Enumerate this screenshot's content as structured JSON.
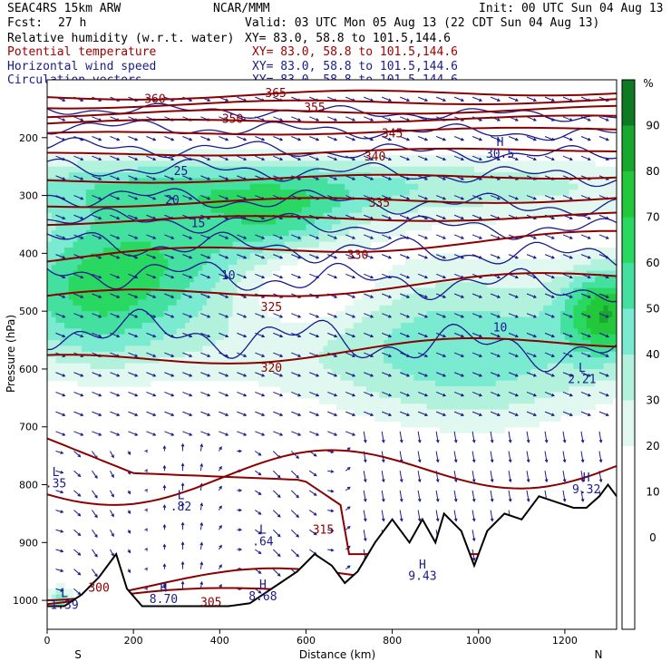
{
  "header": {
    "model": "SEAC4RS 15km ARW",
    "center": "NCAR/MMM",
    "init": "Init: 00 UTC Sun 04 Aug 13",
    "fcst_label": "Fcst:",
    "fcst_value": "27 h",
    "valid": "Valid: 03 UTC Mon 05 Aug 13 (22 CDT Sun 04 Aug 13)"
  },
  "fields": [
    {
      "name": "Relative humidity (w.r.t. water)",
      "xy": "XY=  83.0, 58.8 to 101.5,144.6",
      "color": "#000000"
    },
    {
      "name": "Potential temperature",
      "xy": "XY=  83.0, 58.8 to 101.5,144.6",
      "color": "#a00000"
    },
    {
      "name": "Horizontal wind speed",
      "xy": "XY=  83.0, 58.8 to 101.5,144.6",
      "color": "#1a1a8c"
    },
    {
      "name": "Circulation vectors",
      "xy": "XY=  83.0, 58.8 to 101.5,144.6",
      "color": "#1a1a8c"
    }
  ],
  "chart_data": {
    "type": "heatmap",
    "title": "",
    "xlabel": "Distance (km)",
    "ylabel": "Pressure (hPa)",
    "xlim": [
      0,
      1320
    ],
    "ylim": [
      1050,
      100
    ],
    "x_ticks": [
      0,
      200,
      400,
      600,
      800,
      1000,
      1200
    ],
    "y_ticks": [
      200,
      300,
      400,
      500,
      600,
      700,
      800,
      900,
      1000
    ],
    "end_labels": {
      "left": "S",
      "right": "N"
    },
    "colorbar": {
      "unit": "%",
      "labels": [
        90,
        80,
        70,
        60,
        50,
        40,
        30,
        20,
        10,
        0
      ],
      "colors": [
        "#ffffff",
        "#ffffff",
        "#ffffff",
        "#ffffff",
        "#e0f8f0",
        "#b2f2dc",
        "#7aead0",
        "#44e0a0",
        "#28d860",
        "#22c83a",
        "#18a830",
        "#0e7a22"
      ]
    },
    "theta_labels": [
      {
        "value": "365",
        "x": 530,
        "p": 125
      },
      {
        "value": "360",
        "x": 250,
        "p": 135
      },
      {
        "value": "355",
        "x": 620,
        "p": 150
      },
      {
        "value": "350",
        "x": 430,
        "p": 170
      },
      {
        "value": "345",
        "x": 800,
        "p": 195
      },
      {
        "value": "340",
        "x": 760,
        "p": 235
      },
      {
        "value": "335",
        "x": 770,
        "p": 315
      },
      {
        "value": "330",
        "x": 720,
        "p": 405
      },
      {
        "value": "325",
        "x": 520,
        "p": 495
      },
      {
        "value": "320",
        "x": 520,
        "p": 600
      },
      {
        "value": "315",
        "x": 640,
        "p": 880
      },
      {
        "value": "305",
        "x": 380,
        "p": 1005
      },
      {
        "value": "300",
        "x": 120,
        "p": 980
      }
    ],
    "wind_labels": [
      {
        "value": "10",
        "x": 420,
        "p": 440
      },
      {
        "value": "15",
        "x": 350,
        "p": 350
      },
      {
        "value": "20",
        "x": 290,
        "p": 310
      },
      {
        "value": "25",
        "x": 310,
        "p": 260
      },
      {
        "value": "10",
        "x": 1050,
        "p": 530
      }
    ],
    "extrema": [
      {
        "type": "L",
        "value": ".35",
        "x": 20,
        "p": 800
      },
      {
        "type": "L",
        "value": ".82",
        "x": 310,
        "p": 840
      },
      {
        "type": "L",
        "value": ".64",
        "x": 500,
        "p": 900
      },
      {
        "type": "H",
        "value": "30.5",
        "x": 1050,
        "p": 230
      },
      {
        "type": "H",
        "value": "9.32",
        "x": 1250,
        "p": 810
      },
      {
        "type": "H",
        "value": "9.43",
        "x": 870,
        "p": 960
      },
      {
        "type": "L",
        "value": "2.21",
        "x": 1240,
        "p": 620
      },
      {
        "type": "H",
        "value": "8.70",
        "x": 270,
        "p": 1000
      },
      {
        "type": "H",
        "value": "8.68",
        "x": 500,
        "p": 995
      },
      {
        "type": "L",
        "value": "1.39",
        "x": 40,
        "p": 1010
      }
    ],
    "terrain": [
      [
        0,
        1010
      ],
      [
        40,
        1010
      ],
      [
        80,
        990
      ],
      [
        120,
        960
      ],
      [
        160,
        920
      ],
      [
        185,
        980
      ],
      [
        220,
        1010
      ],
      [
        320,
        1010
      ],
      [
        420,
        1010
      ],
      [
        470,
        1005
      ],
      [
        500,
        990
      ],
      [
        540,
        970
      ],
      [
        580,
        950
      ],
      [
        620,
        920
      ],
      [
        660,
        940
      ],
      [
        690,
        970
      ],
      [
        720,
        950
      ],
      [
        760,
        900
      ],
      [
        800,
        860
      ],
      [
        840,
        900
      ],
      [
        870,
        860
      ],
      [
        900,
        900
      ],
      [
        920,
        850
      ],
      [
        960,
        880
      ],
      [
        990,
        940
      ],
      [
        1020,
        880
      ],
      [
        1060,
        850
      ],
      [
        1100,
        860
      ],
      [
        1140,
        820
      ],
      [
        1180,
        830
      ],
      [
        1220,
        840
      ],
      [
        1250,
        840
      ],
      [
        1280,
        820
      ],
      [
        1300,
        800
      ],
      [
        1320,
        820
      ]
    ]
  }
}
